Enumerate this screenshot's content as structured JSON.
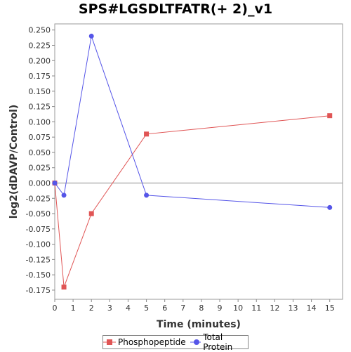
{
  "chart_data": {
    "type": "line",
    "title": "SPS#LGSDLTFATR(+ 2)_v1",
    "xlabel": "Time (minutes)",
    "ylabel": "log2(dDAVP/Control)",
    "xlim": [
      0,
      15.7
    ],
    "ylim": [
      -0.19,
      0.26
    ],
    "x_ticks": [
      0,
      1,
      2,
      3,
      4,
      5,
      6,
      7,
      8,
      9,
      10,
      11,
      12,
      13,
      14,
      15
    ],
    "y_ticks": [
      -0.175,
      -0.15,
      -0.125,
      -0.1,
      -0.075,
      -0.05,
      -0.025,
      0.0,
      0.025,
      0.05,
      0.075,
      0.1,
      0.125,
      0.15,
      0.175,
      0.2,
      0.225,
      0.25
    ],
    "y_tick_labels": [
      "-0.175",
      "-0.150",
      "-0.125",
      "-0.100",
      "-0.075",
      "-0.050",
      "-0.025",
      "0.000",
      "0.025",
      "0.050",
      "0.075",
      "0.100",
      "0.125",
      "0.150",
      "0.175",
      "0.200",
      "0.225",
      "0.250"
    ],
    "grid": false,
    "zero_line": true,
    "legend_position": "bottom",
    "series": [
      {
        "name": "Phosphopeptide",
        "color": "#e05555",
        "marker": "square",
        "x": [
          0,
          0.5,
          2,
          5,
          15
        ],
        "y": [
          0.0,
          -0.17,
          -0.05,
          0.08,
          0.11
        ]
      },
      {
        "name": "Total Protein",
        "color": "#5555e8",
        "marker": "circle",
        "x": [
          0,
          0.5,
          2,
          5,
          15
        ],
        "y": [
          0.0,
          -0.02,
          0.24,
          -0.02,
          -0.04
        ]
      }
    ]
  }
}
